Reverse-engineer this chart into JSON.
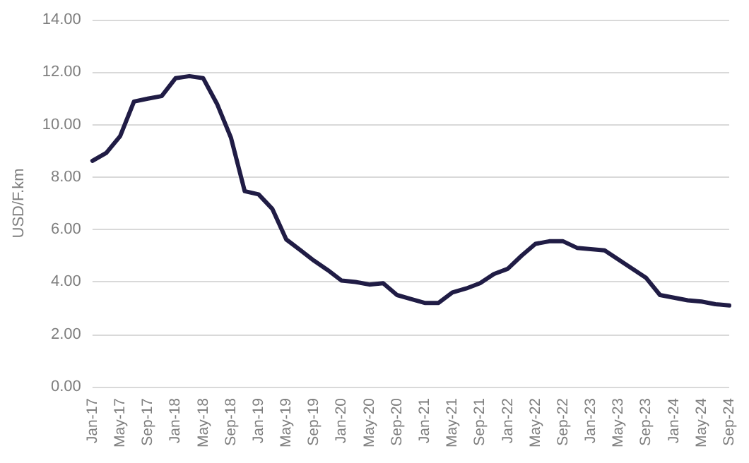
{
  "chart_data": {
    "type": "line",
    "ylabel": "USD/F.km",
    "categories": [
      "Jan-17",
      null,
      "May-17",
      null,
      "Sep-17",
      null,
      "Jan-18",
      null,
      "May-18",
      null,
      "Sep-18",
      null,
      "Jan-19",
      null,
      "May-19",
      null,
      "Sep-19",
      null,
      "Jan-20",
      null,
      "May-20",
      null,
      "Sep-20",
      null,
      "Jan-21",
      null,
      "May-21",
      null,
      "Sep-21",
      null,
      "Jan-22",
      null,
      "May-22",
      null,
      "Sep-22",
      null,
      "Jan-23",
      null,
      "May-23",
      null,
      "Sep-23",
      null,
      "Jan-24",
      null,
      "May-24",
      null,
      "Sep-24"
    ],
    "series": [
      {
        "color": "#201c45",
        "values": [
          8.62,
          8.92,
          9.56,
          10.88,
          10.99,
          11.09,
          11.77,
          11.85,
          11.77,
          10.79,
          9.51,
          7.46,
          7.34,
          6.78,
          5.62,
          5.22,
          4.81,
          4.45,
          4.05,
          4.0,
          3.9,
          3.95,
          3.5,
          3.35,
          3.2,
          3.2,
          3.6,
          3.75,
          3.95,
          4.3,
          4.5,
          5.0,
          5.45,
          5.55,
          5.55,
          5.3,
          5.25,
          5.2,
          4.85,
          4.5,
          4.15,
          3.5,
          3.4,
          3.3,
          3.25,
          3.15,
          3.1
        ]
      }
    ],
    "ylim": [
      0,
      14
    ],
    "yticks": [
      {
        "value": 0,
        "label": "0.00"
      },
      {
        "value": 2,
        "label": "2.00"
      },
      {
        "value": 4,
        "label": "4.00"
      },
      {
        "value": 6,
        "label": "6.00"
      },
      {
        "value": 8,
        "label": "8.00"
      },
      {
        "value": 10,
        "label": "10.00"
      },
      {
        "value": 12,
        "label": "12.00"
      },
      {
        "value": 14,
        "label": "14.00"
      }
    ],
    "grid": "y",
    "marker": "none",
    "line_style": "solid"
  }
}
